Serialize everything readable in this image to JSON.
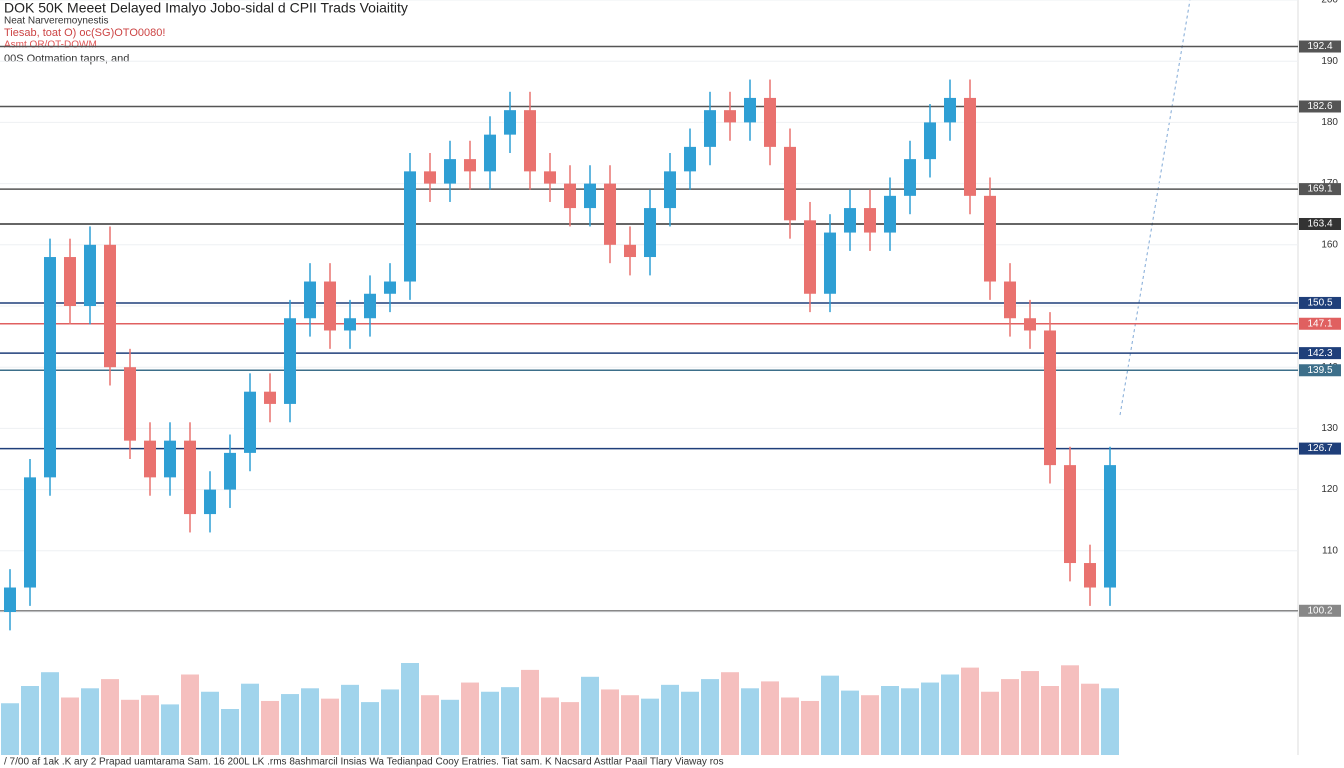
{
  "chart_data": {
    "type": "candlestick",
    "title": "DOK 50K Meeet Delayed Imalyo Jobo-sidal d CPII Trads Voiaitity",
    "subtitle": [
      "Neat Narveremoynestis",
      "Tiesab, toat O) oc(SG)OTO0080!",
      "Asmt OR/OT-DOWM",
      "00S Ootmation taprs, and"
    ],
    "footer": "/ 7/00 af 1ak .K ary 2 Prapad uamtarama Sam. 16 200L LK .rms 8ashmarcil Insias Wa Tedianpad Cooy Eratries. Tiat sam. K Nacsard Asttlar Paail Tlary Viaway ros",
    "open": [
      100,
      104,
      122,
      158,
      150,
      160,
      140,
      128,
      122,
      128,
      116,
      120,
      126,
      136,
      134,
      148,
      154,
      146,
      148,
      152,
      154,
      172,
      170,
      174,
      172,
      178,
      182,
      172,
      170,
      166,
      170,
      160,
      158,
      166,
      172,
      176,
      182,
      180,
      184,
      176,
      164,
      152,
      162,
      166,
      162,
      168,
      174,
      180,
      184,
      168,
      154,
      148,
      146,
      124,
      108,
      104
    ],
    "high": [
      107,
      125,
      161,
      161,
      163,
      163,
      143,
      131,
      131,
      131,
      123,
      129,
      139,
      139,
      151,
      157,
      157,
      151,
      155,
      157,
      175,
      175,
      177,
      177,
      181,
      185,
      185,
      175,
      173,
      173,
      173,
      163,
      169,
      175,
      179,
      185,
      185,
      187,
      187,
      179,
      167,
      165,
      169,
      169,
      171,
      177,
      183,
      187,
      187,
      171,
      157,
      151,
      149,
      127,
      111,
      127
    ],
    "low": [
      97,
      101,
      119,
      147,
      147,
      137,
      125,
      119,
      119,
      113,
      113,
      117,
      123,
      131,
      131,
      145,
      143,
      143,
      145,
      149,
      151,
      167,
      167,
      169,
      169,
      175,
      169,
      167,
      163,
      163,
      157,
      155,
      155,
      163,
      169,
      173,
      177,
      177,
      173,
      161,
      149,
      149,
      159,
      159,
      159,
      165,
      171,
      177,
      165,
      151,
      145,
      143,
      121,
      105,
      101,
      101
    ],
    "close": [
      104,
      122,
      158,
      150,
      160,
      140,
      128,
      122,
      128,
      116,
      120,
      126,
      136,
      134,
      148,
      154,
      146,
      148,
      152,
      154,
      172,
      170,
      174,
      172,
      178,
      182,
      172,
      170,
      166,
      170,
      160,
      158,
      166,
      172,
      176,
      182,
      180,
      184,
      176,
      164,
      152,
      162,
      166,
      162,
      168,
      174,
      180,
      184,
      168,
      154,
      148,
      146,
      124,
      108,
      104,
      124
    ],
    "volume": [
      45,
      60,
      72,
      50,
      58,
      66,
      48,
      52,
      44,
      70,
      55,
      40,
      62,
      47,
      53,
      58,
      49,
      61,
      46,
      57,
      80,
      52,
      48,
      63,
      55,
      59,
      74,
      50,
      46,
      68,
      57,
      52,
      49,
      61,
      55,
      66,
      72,
      58,
      64,
      50,
      47,
      69,
      56,
      52,
      60,
      58,
      63,
      70,
      76,
      55,
      66,
      73,
      60,
      78,
      62,
      58
    ],
    "up_color": "#2f9fd4",
    "down_color": "#e9726f",
    "ylim": [
      100,
      200
    ],
    "yticks": [
      100,
      110,
      120,
      130,
      140,
      150,
      160,
      170,
      180,
      190,
      200
    ],
    "vlim": [
      0,
      100
    ],
    "levels": [
      {
        "value": 192.4,
        "color": "#555555"
      },
      {
        "value": 182.6,
        "color": "#555555"
      },
      {
        "value": 169.1,
        "color": "#555555"
      },
      {
        "value": 163.4,
        "color": "#333333"
      },
      {
        "value": 150.5,
        "color": "#1f3f7a"
      },
      {
        "value": 147.1,
        "color": "#e06060"
      },
      {
        "value": 142.3,
        "color": "#1f3f7a"
      },
      {
        "value": 139.5,
        "color": "#3d6f8a"
      },
      {
        "value": 126.7,
        "color": "#1f3f7a"
      },
      {
        "value": 100.2,
        "color": "#888888"
      }
    ],
    "grid": true
  }
}
